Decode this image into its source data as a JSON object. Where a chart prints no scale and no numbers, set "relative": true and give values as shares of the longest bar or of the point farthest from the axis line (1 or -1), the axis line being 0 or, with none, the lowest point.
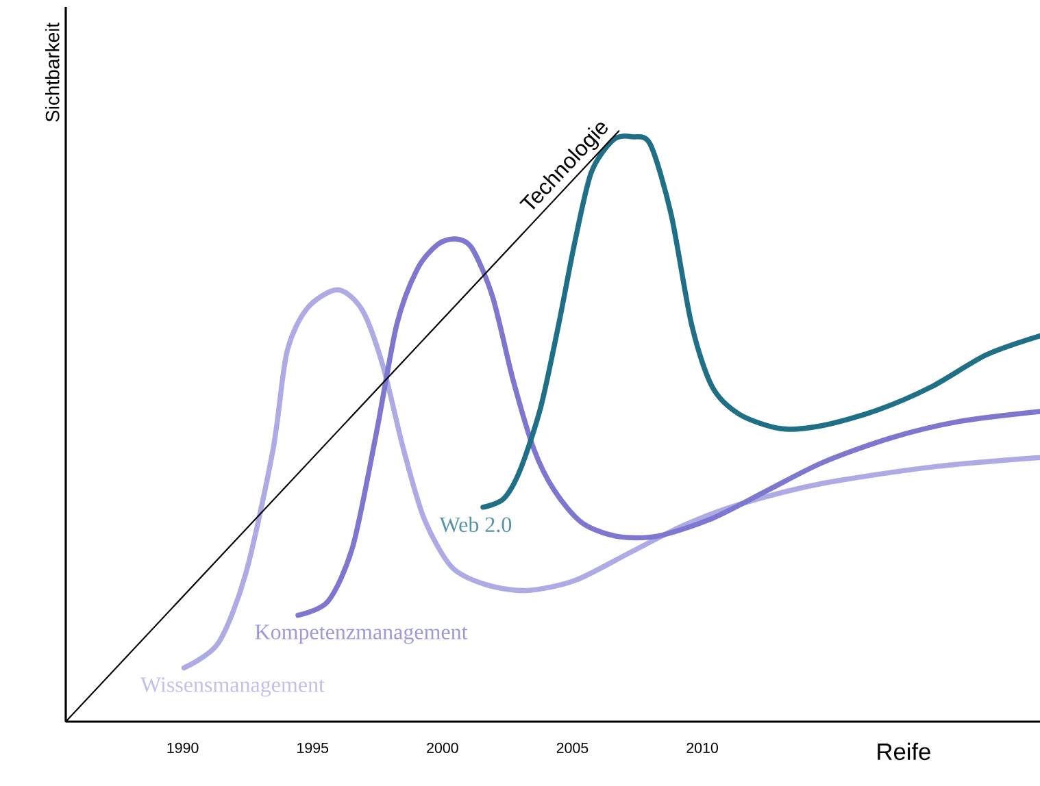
{
  "chart_data": {
    "type": "line",
    "relative": true,
    "xlabel": "Reife",
    "ylabel": "Sichtbarkeit",
    "xlim": [
      1985.5,
      2023
    ],
    "xticks": [
      1990,
      1995,
      2000,
      2005,
      2010
    ],
    "marker": "none",
    "line_style": "solid",
    "series": [
      {
        "name": "Wissensmanagement",
        "color": "#aeaae4",
        "x": [
          1990.05,
          1991.37,
          1992.43,
          1993.48,
          1994.01,
          1994.8,
          1995.97,
          1996.92,
          1997.71,
          1998.5,
          1999.29,
          2000.35,
          2001.67,
          2003.25,
          2005.1,
          2007.21,
          2009.32,
          2011.44,
          2014.6,
          2018.83,
          2023
        ],
        "values": [
          0.091,
          0.133,
          0.251,
          0.461,
          0.625,
          0.7,
          0.731,
          0.696,
          0.602,
          0.461,
          0.344,
          0.262,
          0.232,
          0.222,
          0.239,
          0.286,
          0.333,
          0.368,
          0.403,
          0.431,
          0.447
        ]
      },
      {
        "name": "Kompetenzmanagement",
        "color": "#7d77d0",
        "x": [
          1994.44,
          1995.6,
          1996.55,
          1997.44,
          1998.24,
          1999.03,
          1999.82,
          2000.51,
          2001.14,
          2001.93,
          2002.72,
          2003.52,
          2004.31,
          2005.36,
          2006.68,
          2008.27,
          2010.38,
          2012.49,
          2014.6,
          2017.24,
          2019.88,
          2023
        ],
        "values": [
          0.18,
          0.204,
          0.297,
          0.485,
          0.672,
          0.766,
          0.808,
          0.817,
          0.801,
          0.719,
          0.578,
          0.461,
          0.391,
          0.337,
          0.314,
          0.314,
          0.344,
          0.391,
          0.438,
          0.48,
          0.508,
          0.525
        ]
      },
      {
        "name": "Web 2.0",
        "color": "#1f6f86",
        "x": [
          2001.56,
          2002.35,
          2002.99,
          2003.78,
          2004.47,
          2005.1,
          2005.73,
          2006.58,
          2007.32,
          2008.0,
          2008.8,
          2009.59,
          2010.38,
          2011.44,
          2013.02,
          2014.6,
          2016.72,
          2018.83,
          2020.94,
          2023
        ],
        "values": [
          0.363,
          0.377,
          0.426,
          0.532,
          0.672,
          0.813,
          0.93,
          0.985,
          0.99,
          0.977,
          0.859,
          0.672,
          0.567,
          0.52,
          0.496,
          0.501,
          0.527,
          0.567,
          0.621,
          0.653
        ]
      },
      {
        "name": "Technologie",
        "color": "#000000",
        "x": [
          1985.5,
          2006.79
        ],
        "values": [
          0,
          1
        ]
      }
    ]
  }
}
